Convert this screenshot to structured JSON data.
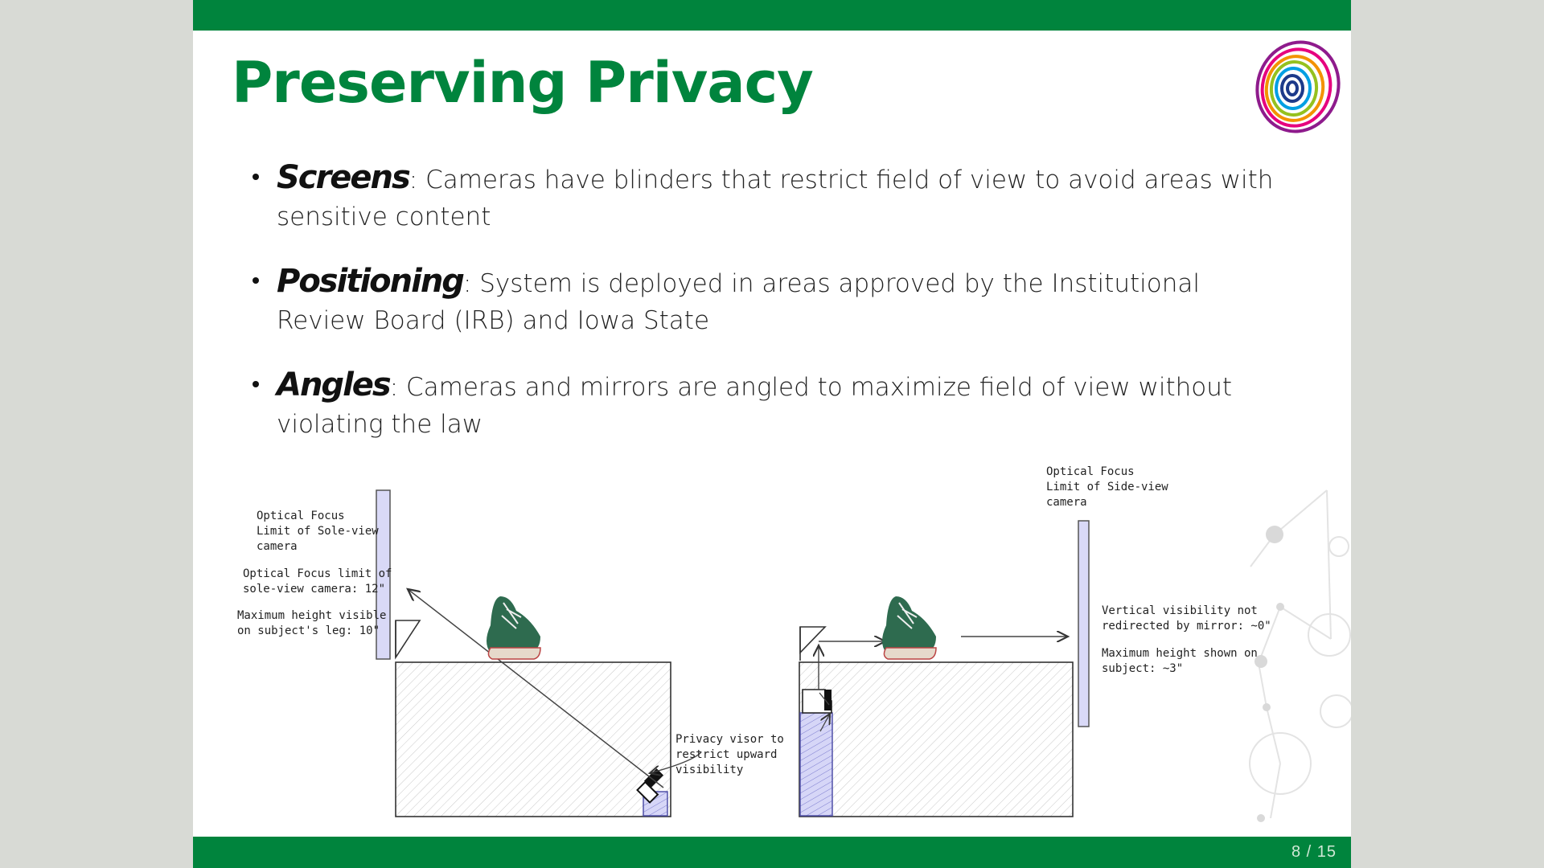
{
  "slide": {
    "title": "Preserving Privacy",
    "page_number": "8 / 15"
  },
  "bullets": [
    {
      "term": "Screens",
      "text": ": Cameras have blinders that restrict field of view to avoid areas with sensitive content"
    },
    {
      "term": "Positioning",
      "text": ": System is deployed in areas approved by the Institutional Review Board (IRB) and Iowa State"
    },
    {
      "term": "Angles",
      "text": ": Cameras and mirrors are angled to maximize field of view without violating the law"
    }
  ],
  "diagram": {
    "left": {
      "optical_focus_label_1": "Optical Focus",
      "optical_focus_label_2": "Limit of Sole-view",
      "optical_focus_label_3": "camera",
      "focus_limit_1": "Optical Focus limit of",
      "focus_limit_2": "sole-view camera: 12\"",
      "max_height_1": "Maximum height visible",
      "max_height_2": "on subject's leg: 10\"",
      "visor_1": "Privacy visor to",
      "visor_2": "restrict upward",
      "visor_3": "visibility"
    },
    "right": {
      "optical_focus_label_1": "Optical Focus",
      "optical_focus_label_2": "Limit of Side-view",
      "optical_focus_label_3": "camera",
      "vertical_1": "Vertical visibility not",
      "vertical_2": "redirected by mirror: ~0\"",
      "max_height_1": "Maximum height shown on",
      "max_height_2": "subject: ~3\""
    }
  },
  "colors": {
    "brand_green": "#00843d",
    "diagram_purple": "#b8b8ee",
    "shoe_green": "#2e6b4f"
  }
}
